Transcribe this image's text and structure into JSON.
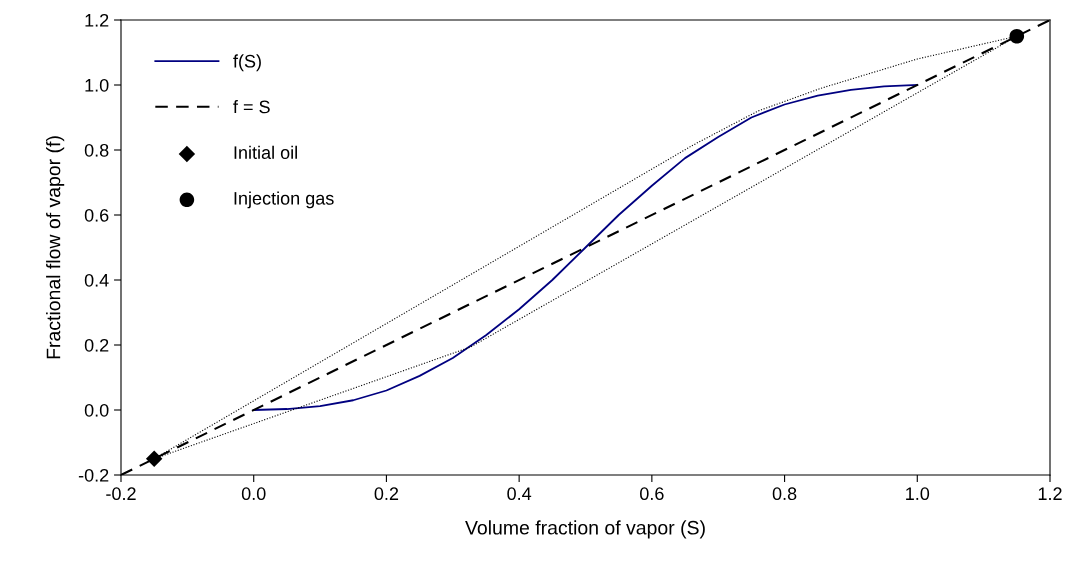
{
  "chart_data": {
    "type": "line",
    "xlabel": "Volume fraction of vapor (S)",
    "ylabel": "Fractional flow of vapor (f)",
    "xlim": [
      -0.2,
      1.2
    ],
    "ylim": [
      -0.2,
      1.2
    ],
    "xticks": [
      {
        "value": -0.2,
        "label": "-0.2"
      },
      {
        "value": 0.0,
        "label": "0.0"
      },
      {
        "value": 0.2,
        "label": "0.2"
      },
      {
        "value": 0.4,
        "label": "0.4"
      },
      {
        "value": 0.6,
        "label": "0.6"
      },
      {
        "value": 0.8,
        "label": "0.8"
      },
      {
        "value": 1.0,
        "label": "1.0"
      },
      {
        "value": 1.2,
        "label": "1.2"
      }
    ],
    "yticks": [
      {
        "value": -0.2,
        "label": "-0.2"
      },
      {
        "value": 0.0,
        "label": "0.0"
      },
      {
        "value": 0.2,
        "label": "0.2"
      },
      {
        "value": 0.4,
        "label": "0.4"
      },
      {
        "value": 0.6,
        "label": "0.6"
      },
      {
        "value": 0.8,
        "label": "0.8"
      },
      {
        "value": 1.0,
        "label": "1.0"
      },
      {
        "value": 1.2,
        "label": "1.2"
      }
    ],
    "grid": false,
    "legend": "top left",
    "series": [
      {
        "name": "f(S)",
        "color": "#000080",
        "line_style": "solid",
        "marker": "none",
        "x": [
          0,
          0.05,
          0.1,
          0.15,
          0.2,
          0.25,
          0.3,
          0.35,
          0.4,
          0.45,
          0.5,
          0.55,
          0.6,
          0.65,
          0.7,
          0.75,
          0.8,
          0.85,
          0.9,
          0.95,
          1.0
        ],
        "values": [
          0,
          0.003,
          0.012,
          0.03,
          0.06,
          0.105,
          0.16,
          0.23,
          0.31,
          0.4,
          0.5,
          0.6,
          0.69,
          0.775,
          0.84,
          0.9,
          0.94,
          0.967,
          0.985,
          0.996,
          1.0
        ]
      },
      {
        "name": "f = S",
        "color": "#000000",
        "line_style": "dashed",
        "marker": "none",
        "x": [
          -0.2,
          1.2
        ],
        "values": [
          -0.2,
          1.2
        ]
      },
      {
        "color": "#000000",
        "line_style": "dotted",
        "marker": "none",
        "x": [
          -0.15,
          0.662,
          0.76,
          0.855,
          1.0,
          1.15
        ],
        "values": [
          -0.15,
          0.815,
          0.92,
          0.99,
          1.08,
          1.15
        ]
      },
      {
        "color": "#000000",
        "line_style": "dotted",
        "marker": "none",
        "x": [
          -0.15,
          0.327,
          1.15
        ],
        "values": [
          -0.15,
          0.194,
          1.15
        ]
      },
      {
        "name": "Initial oil",
        "type": "scatter",
        "color": "#000000",
        "marker": "diamond",
        "x": [
          -0.15
        ],
        "values": [
          -0.15
        ]
      },
      {
        "name": "Injection gas",
        "type": "scatter",
        "color": "#000000",
        "marker": "circle",
        "x": [
          1.15
        ],
        "values": [
          1.15
        ]
      }
    ]
  }
}
